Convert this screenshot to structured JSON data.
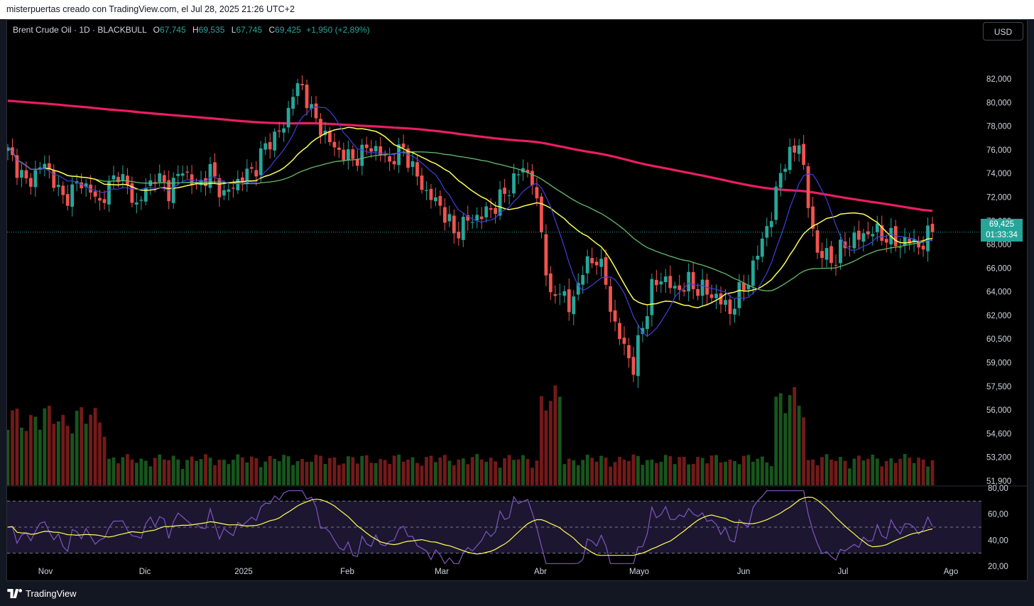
{
  "header": {
    "caption": "misterpuertas creado con TradingView.com, el Jul 28, 2025 21:26 UTC+2"
  },
  "legend": {
    "symbol": "Brent Crude Oil · 1D · BLACKBULL",
    "open_label": "O",
    "open": "67,745",
    "high_label": "H",
    "high": "69,535",
    "low_label": "L",
    "low": "67,745",
    "close_label": "C",
    "close": "69,425",
    "change": "+1,950 (+2,89%)"
  },
  "currency_button": "USD",
  "last_price": {
    "price": "69,425",
    "countdown": "01:33:34"
  },
  "footer": {
    "brand": "TradingView"
  },
  "colors": {
    "up": "#26a69a",
    "down": "#ef5350",
    "background": "#000000",
    "ma_fast": "#3f3fdc",
    "ma_mid": "#ffff55",
    "ma_slow": "#66bb6a",
    "ma_long": "#e91e63",
    "rsi_line": "#7e57c2",
    "rsi_ma": "#ffff55"
  },
  "chart_data": {
    "type": "candlestick",
    "price_axis_ticks": [
      "82,000",
      "80,000",
      "78,000",
      "76,000",
      "74,000",
      "72,000",
      "70,000",
      "68,000",
      "66,000",
      "64,000",
      "62,000",
      "60,500",
      "59,000",
      "57,500",
      "56,000",
      "54,600",
      "53,200",
      "51,900"
    ],
    "time_axis_ticks": [
      "Nov",
      "Dic",
      "2025",
      "Feb",
      "Mar",
      "Abr",
      "Mayo",
      "Jun",
      "Jul",
      "Ago"
    ],
    "rsi_axis_ticks": [
      "80,00",
      "60,00",
      "40,00",
      "20,00"
    ],
    "grid": false,
    "ylim": [
      51.9,
      82
    ],
    "anchors": [
      {
        "t": 0,
        "p": 75.5
      },
      {
        "t": 4,
        "p": 72.8
      },
      {
        "t": 8,
        "p": 74.5
      },
      {
        "t": 12,
        "p": 71.5
      },
      {
        "t": 16,
        "p": 73.0
      },
      {
        "t": 20,
        "p": 71.2
      },
      {
        "t": 24,
        "p": 73.8
      },
      {
        "t": 28,
        "p": 71.0
      },
      {
        "t": 32,
        "p": 73.5
      },
      {
        "t": 35,
        "p": 72.2
      },
      {
        "t": 38,
        "p": 74.0
      },
      {
        "t": 41,
        "p": 72.5
      },
      {
        "t": 44,
        "p": 73.8
      },
      {
        "t": 47,
        "p": 71.8
      },
      {
        "t": 50,
        "p": 73.0
      },
      {
        "t": 54,
        "p": 74.2
      },
      {
        "t": 56,
        "p": 76.0
      },
      {
        "t": 60,
        "p": 77.6
      },
      {
        "t": 62,
        "p": 80.8
      },
      {
        "t": 64,
        "p": 81.3
      },
      {
        "t": 66,
        "p": 79.0
      },
      {
        "t": 68,
        "p": 77.5
      },
      {
        "t": 71,
        "p": 75.8
      },
      {
        "t": 75,
        "p": 74.8
      },
      {
        "t": 79,
        "p": 76.0
      },
      {
        "t": 83,
        "p": 74.6
      },
      {
        "t": 86,
        "p": 75.8
      },
      {
        "t": 88,
        "p": 74.0
      },
      {
        "t": 91,
        "p": 72.0
      },
      {
        "t": 94,
        "p": 71.0
      },
      {
        "t": 97,
        "p": 68.8
      },
      {
        "t": 100,
        "p": 69.8
      },
      {
        "t": 103,
        "p": 70.2
      },
      {
        "t": 106,
        "p": 71.0
      },
      {
        "t": 109,
        "p": 72.5
      },
      {
        "t": 112,
        "p": 74.2
      },
      {
        "t": 114,
        "p": 73.0
      },
      {
        "t": 116,
        "p": 69.0
      },
      {
        "t": 118,
        "p": 63.5
      },
      {
        "t": 120,
        "p": 64.8
      },
      {
        "t": 122,
        "p": 63.0
      },
      {
        "t": 125,
        "p": 66.0
      },
      {
        "t": 128,
        "p": 67.0
      },
      {
        "t": 130,
        "p": 65.0
      },
      {
        "t": 132,
        "p": 61.8
      },
      {
        "t": 134,
        "p": 60.5
      },
      {
        "t": 136,
        "p": 59.0
      },
      {
        "t": 138,
        "p": 62.0
      },
      {
        "t": 140,
        "p": 64.5
      },
      {
        "t": 142,
        "p": 65.5
      },
      {
        "t": 145,
        "p": 64.5
      },
      {
        "t": 148,
        "p": 65.0
      },
      {
        "t": 151,
        "p": 64.5
      },
      {
        "t": 154,
        "p": 64.0
      },
      {
        "t": 157,
        "p": 63.0
      },
      {
        "t": 160,
        "p": 64.8
      },
      {
        "t": 162,
        "p": 66.0
      },
      {
        "t": 164,
        "p": 68.5
      },
      {
        "t": 166,
        "p": 70.0
      },
      {
        "t": 168,
        "p": 74.0
      },
      {
        "t": 170,
        "p": 75.0
      },
      {
        "t": 172,
        "p": 76.5
      },
      {
        "t": 174,
        "p": 71.0
      },
      {
        "t": 176,
        "p": 67.3
      },
      {
        "t": 178,
        "p": 67.0
      },
      {
        "t": 180,
        "p": 66.8
      },
      {
        "t": 182,
        "p": 68.0
      },
      {
        "t": 185,
        "p": 68.5
      },
      {
        "t": 188,
        "p": 69.0
      },
      {
        "t": 191,
        "p": 68.5
      },
      {
        "t": 194,
        "p": 68.0
      },
      {
        "t": 196,
        "p": 68.2
      },
      {
        "t": 199,
        "p": 67.8
      },
      {
        "t": 201,
        "p": 69.4
      }
    ],
    "bars": 202
  }
}
